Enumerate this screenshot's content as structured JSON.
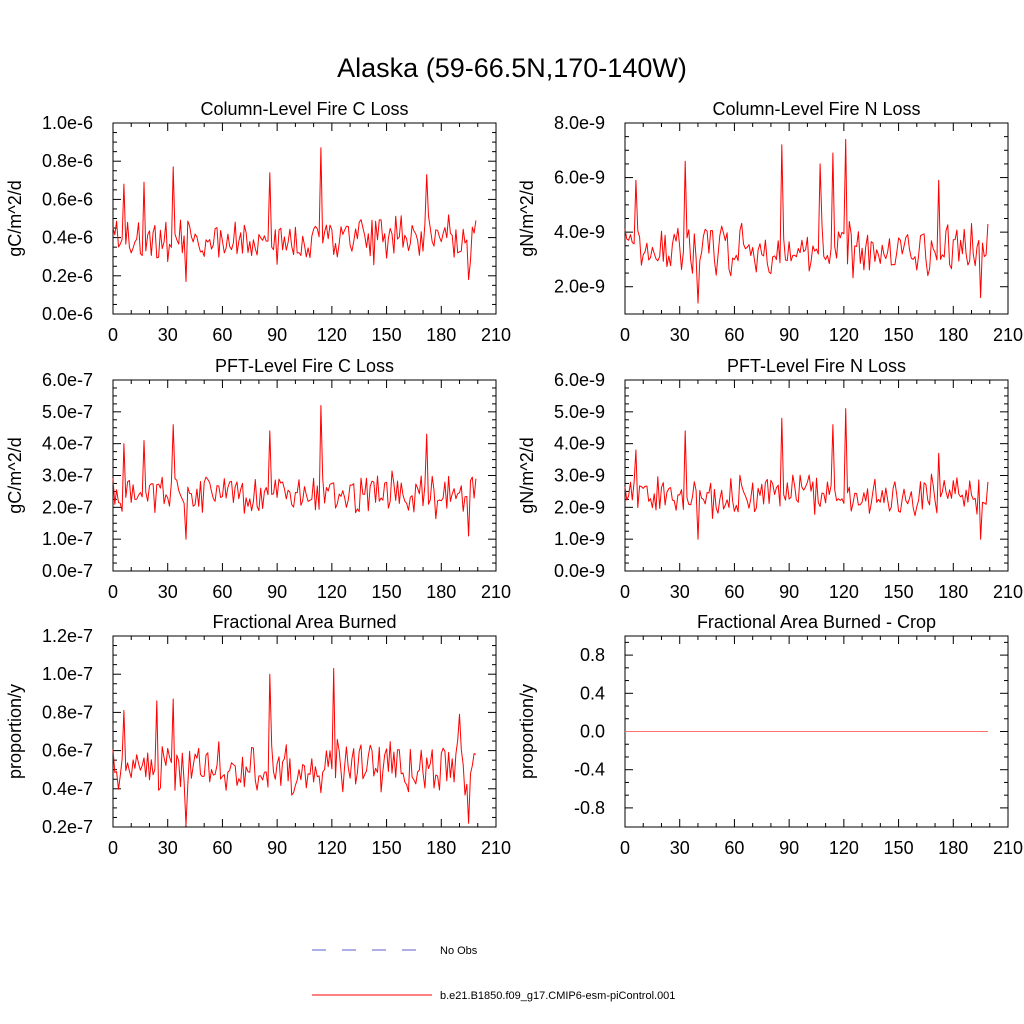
{
  "figure": {
    "title": "Alaska (59-66.5N,170-140W)"
  },
  "legend": {
    "entries": [
      {
        "label": "No Obs",
        "color": "#5b5bd0",
        "dash": true
      },
      {
        "label": "b.e21.B1850.f09_g17.CMIP6-esm-piControl.001",
        "color": "#ff0000",
        "dash": false
      }
    ]
  },
  "colors": {
    "series": "#ff0000",
    "obs": "#5b5bd0"
  },
  "chart_data": [
    {
      "type": "line",
      "title": "Column-Level Fire C Loss",
      "ylabel": "gC/m^2/d",
      "xlim": [
        0,
        210
      ],
      "ylim": [
        0,
        1e-06
      ],
      "xticks": [
        0,
        30,
        60,
        90,
        120,
        150,
        180,
        210
      ],
      "yticks": [
        0,
        2e-07,
        4e-07,
        6e-07,
        8e-07,
        1e-06
      ],
      "ytick_labels": [
        "0.0e-6",
        "0.2e-6",
        "0.4e-6",
        "0.6e-6",
        "0.8e-6",
        "1.0e-6"
      ],
      "yminor": 4,
      "series": [
        {
          "name": "b.e21.B1850.f09_g17.CMIP6-esm-piControl.001",
          "base": 3.9e-07,
          "amp": 1.2e-07,
          "peaks": [
            [
              6,
              6.8e-07
            ],
            [
              17,
              6.9e-07
            ],
            [
              33,
              7.7e-07
            ],
            [
              86,
              7.4e-07
            ],
            [
              114,
              8.7e-07
            ],
            [
              172,
              7.3e-07
            ]
          ],
          "troughs": [
            [
              40,
              1.7e-07
            ],
            [
              195,
              1.8e-07
            ]
          ],
          "last": 4.9e-07
        }
      ]
    },
    {
      "type": "line",
      "title": "Column-Level Fire N Loss",
      "ylabel": "gN/m^2/d",
      "xlim": [
        0,
        210
      ],
      "ylim": [
        1e-09,
        8e-09
      ],
      "xticks": [
        0,
        30,
        60,
        90,
        120,
        150,
        180,
        210
      ],
      "yticks": [
        2e-09,
        4e-09,
        6e-09,
        8e-09
      ],
      "ytick_labels": [
        "2.0e-9",
        "4.0e-9",
        "6.0e-9",
        "8.0e-9"
      ],
      "yminor": 4,
      "series": [
        {
          "name": "b.e21.B1850.f09_g17.CMIP6-esm-piControl.001",
          "base": 3.4e-09,
          "amp": 1e-09,
          "peaks": [
            [
              6,
              5.9e-09
            ],
            [
              33,
              6.6e-09
            ],
            [
              86,
              7.2e-09
            ],
            [
              107,
              6.5e-09
            ],
            [
              114,
              6.9e-09
            ],
            [
              121,
              7.4e-09
            ],
            [
              172,
              5.9e-09
            ]
          ],
          "troughs": [
            [
              40,
              1.4e-09
            ],
            [
              195,
              1.6e-09
            ]
          ],
          "last": 4.3e-09
        }
      ]
    },
    {
      "type": "line",
      "title": "PFT-Level Fire C Loss",
      "ylabel": "gC/m^2/d",
      "xlim": [
        0,
        210
      ],
      "ylim": [
        0,
        6e-07
      ],
      "xticks": [
        0,
        30,
        60,
        90,
        120,
        150,
        180,
        210
      ],
      "yticks": [
        0,
        1e-07,
        2e-07,
        3e-07,
        4e-07,
        5e-07,
        6e-07
      ],
      "ytick_labels": [
        "0.0e-7",
        "1.0e-7",
        "2.0e-7",
        "3.0e-7",
        "4.0e-7",
        "5.0e-7",
        "6.0e-7"
      ],
      "yminor": 4,
      "series": [
        {
          "name": "b.e21.B1850.f09_g17.CMIP6-esm-piControl.001",
          "base": 2.4e-07,
          "amp": 7e-08,
          "peaks": [
            [
              6,
              4e-07
            ],
            [
              17,
              4.1e-07
            ],
            [
              33,
              4.6e-07
            ],
            [
              86,
              4.4e-07
            ],
            [
              114,
              5.2e-07
            ],
            [
              172,
              4.3e-07
            ]
          ],
          "troughs": [
            [
              40,
              1e-07
            ],
            [
              195,
              1.1e-07
            ]
          ],
          "last": 2.9e-07
        }
      ]
    },
    {
      "type": "line",
      "title": "PFT-Level Fire N Loss",
      "ylabel": "gN/m^2/d",
      "xlim": [
        0,
        210
      ],
      "ylim": [
        0,
        6e-09
      ],
      "xticks": [
        0,
        30,
        60,
        90,
        120,
        150,
        180,
        210
      ],
      "yticks": [
        0,
        1e-09,
        2e-09,
        3e-09,
        4e-09,
        5e-09,
        6e-09
      ],
      "ytick_labels": [
        "0.0e-9",
        "1.0e-9",
        "2.0e-9",
        "3.0e-9",
        "4.0e-9",
        "5.0e-9",
        "6.0e-9"
      ],
      "yminor": 4,
      "series": [
        {
          "name": "b.e21.B1850.f09_g17.CMIP6-esm-piControl.001",
          "base": 2.4e-09,
          "amp": 7e-10,
          "peaks": [
            [
              6,
              3.8e-09
            ],
            [
              33,
              4.4e-09
            ],
            [
              86,
              4.8e-09
            ],
            [
              114,
              4.6e-09
            ],
            [
              121,
              5.1e-09
            ],
            [
              172,
              3.7e-09
            ]
          ],
          "troughs": [
            [
              40,
              1e-09
            ],
            [
              195,
              1e-09
            ]
          ],
          "last": 2.8e-09
        }
      ]
    },
    {
      "type": "line",
      "title": "Fractional Area Burned",
      "ylabel": "proportion/y",
      "xlim": [
        0,
        210
      ],
      "ylim": [
        2e-08,
        1.2e-07
      ],
      "xticks": [
        0,
        30,
        60,
        90,
        120,
        150,
        180,
        210
      ],
      "yticks": [
        2e-08,
        4e-08,
        6e-08,
        8e-08,
        1e-07,
        1.2e-07
      ],
      "ytick_labels": [
        "0.2e-7",
        "0.4e-7",
        "0.6e-7",
        "0.8e-7",
        "1.0e-7",
        "1.2e-7"
      ],
      "yminor": 4,
      "series": [
        {
          "name": "b.e21.B1850.f09_g17.CMIP6-esm-piControl.001",
          "base": 5.1e-08,
          "amp": 1.4e-08,
          "peaks": [
            [
              6,
              8.1e-08
            ],
            [
              24,
              8.6e-08
            ],
            [
              33,
              8.7e-08
            ],
            [
              86,
              1e-07
            ],
            [
              121,
              1.03e-07
            ],
            [
              190,
              7.9e-08
            ]
          ],
          "troughs": [
            [
              40,
              2.1e-08
            ],
            [
              195,
              2.2e-08
            ]
          ],
          "last": 5.8e-08
        }
      ]
    },
    {
      "type": "line",
      "title": "Fractional Area Burned - Crop",
      "ylabel": "proportion/y",
      "xlim": [
        0,
        210
      ],
      "ylim": [
        -1.0,
        1.0
      ],
      "xticks": [
        0,
        30,
        60,
        90,
        120,
        150,
        180,
        210
      ],
      "yticks": [
        -0.8,
        -0.4,
        0.0,
        0.4,
        0.8
      ],
      "ytick_labels": [
        "-0.8",
        "-0.4",
        "0.0",
        "0.4",
        "0.8"
      ],
      "yminor": 3,
      "series": [
        {
          "name": "b.e21.B1850.f09_g17.CMIP6-esm-piControl.001",
          "constant": 0.0
        }
      ]
    }
  ]
}
